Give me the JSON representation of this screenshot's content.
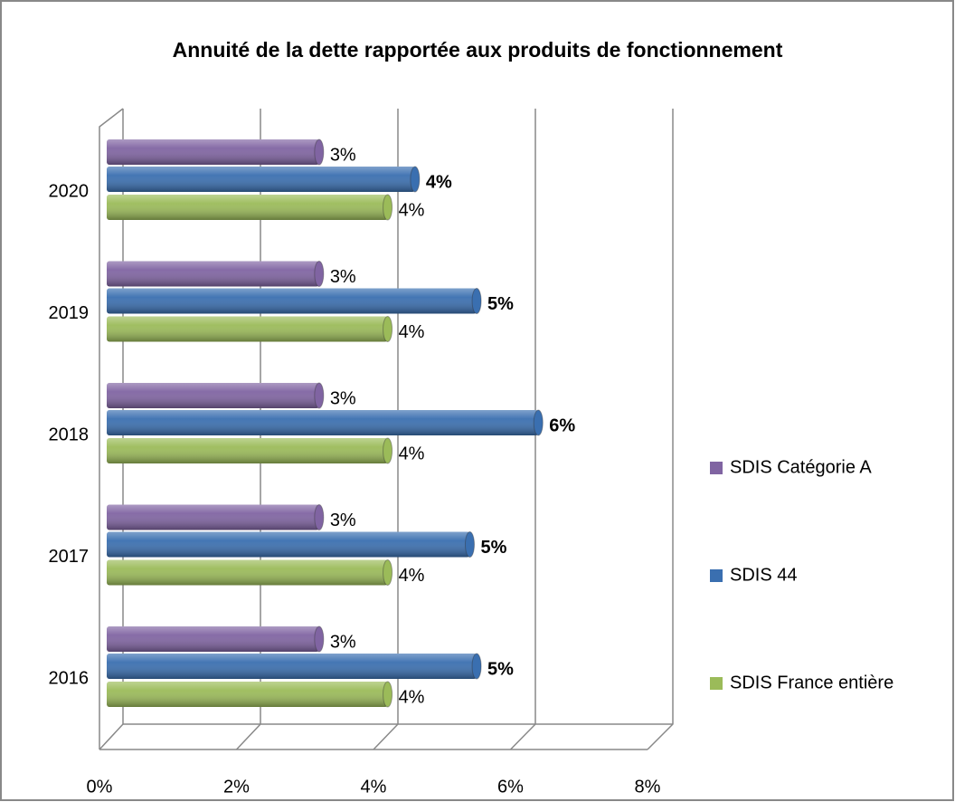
{
  "chart_data": {
    "type": "bar3d_horizontal",
    "title": "Annuité de la dette rapportée aux produits de fonctionnement",
    "categories": [
      "2016",
      "2017",
      "2018",
      "2019",
      "2020"
    ],
    "series": [
      {
        "name": "SDIS Catégorie A",
        "color": "#8064a2",
        "values": [
          3.1,
          3.1,
          3.1,
          3.1,
          3.1
        ],
        "value_labels": [
          "3%",
          "3%",
          "3%",
          "3%",
          "3%"
        ]
      },
      {
        "name": "SDIS 44",
        "color": "#3a6fb0",
        "values": [
          5.4,
          5.3,
          6.3,
          5.4,
          4.5
        ],
        "value_labels": [
          "5%",
          "5%",
          "6%",
          "5%",
          "4%"
        ]
      },
      {
        "name": "SDIS France entière",
        "color": "#9bbb59",
        "values": [
          4.1,
          4.1,
          4.1,
          4.1,
          4.1
        ],
        "value_labels": [
          "4%",
          "4%",
          "4%",
          "4%",
          "4%"
        ]
      }
    ],
    "xlim": [
      0,
      8
    ],
    "xticks": [
      {
        "value": 0,
        "label": "0%"
      },
      {
        "value": 2,
        "label": "2%"
      },
      {
        "value": 4,
        "label": "4%"
      },
      {
        "value": 6,
        "label": "6%"
      },
      {
        "value": 8,
        "label": "8%"
      }
    ],
    "grid": true,
    "legend": "right"
  }
}
